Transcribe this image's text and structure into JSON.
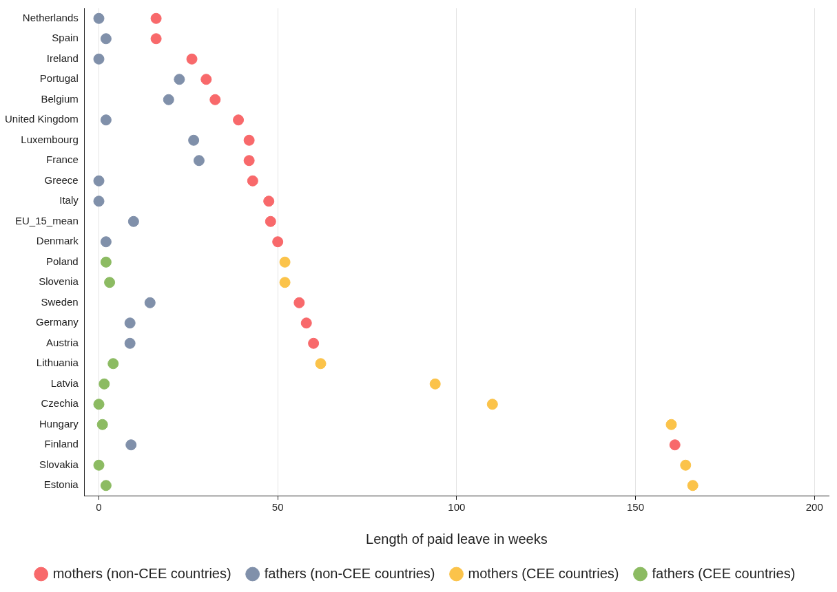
{
  "chart_data": {
    "type": "scatter",
    "xlabel": "Length of paid leave in weeks",
    "categories": [
      "Netherlands",
      "Spain",
      "Ireland",
      "Portugal",
      "Belgium",
      "United Kingdom",
      "Luxembourg",
      "France",
      "Greece",
      "Italy",
      "EU_15_mean",
      "Denmark",
      "Poland",
      "Slovenia",
      "Sweden",
      "Germany",
      "Austria",
      "Lithuania",
      "Latvia",
      "Czechia",
      "Hungary",
      "Finland",
      "Slovakia",
      "Estonia"
    ],
    "orientation": "horizontal",
    "xlim": [
      -4,
      204
    ],
    "xticks": [
      0,
      50,
      100,
      150,
      200
    ],
    "grid": "x",
    "legend": "bottom",
    "marker": "circle",
    "series": [
      {
        "name": "mothers (non-CEE countries)",
        "color": "#f8696b",
        "values": [
          16,
          16,
          26,
          30,
          32.5,
          39,
          42,
          42,
          43,
          47.5,
          48,
          50,
          null,
          null,
          56,
          58,
          60,
          null,
          null,
          null,
          null,
          161,
          null,
          null
        ]
      },
      {
        "name": "fathers (non-CEE countries)",
        "color": "#8090aa",
        "values": [
          0,
          2,
          0,
          22.5,
          19.5,
          2,
          26.5,
          28,
          0,
          0,
          9.7,
          2,
          null,
          null,
          14.3,
          8.7,
          8.7,
          null,
          null,
          null,
          null,
          9,
          null,
          null
        ]
      },
      {
        "name": "mothers (CEE countries)",
        "color": "#fbc34a",
        "values": [
          null,
          null,
          null,
          null,
          null,
          null,
          null,
          null,
          null,
          null,
          null,
          null,
          52,
          52,
          null,
          null,
          null,
          62,
          94,
          110,
          160,
          null,
          164,
          166
        ]
      },
      {
        "name": "fathers (CEE countries)",
        "color": "#8cbb62",
        "values": [
          null,
          null,
          null,
          null,
          null,
          null,
          null,
          null,
          null,
          null,
          null,
          null,
          2,
          3,
          null,
          null,
          null,
          4,
          1.5,
          0,
          1,
          null,
          0,
          2
        ]
      }
    ]
  }
}
